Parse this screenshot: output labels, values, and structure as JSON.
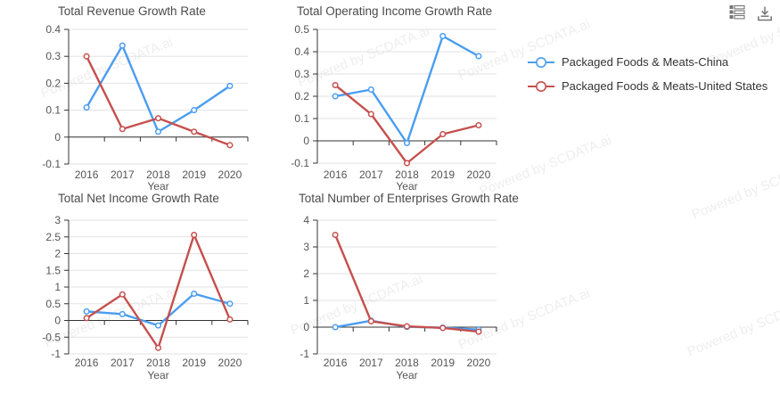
{
  "watermark": {
    "text": "Powered by SCDATA.ai"
  },
  "toolbar": {
    "icons": [
      {
        "name": "data-view"
      },
      {
        "name": "download"
      }
    ]
  },
  "legend": {
    "items": [
      {
        "label": "Packaged Foods & Meats-China",
        "color": "#4a9df0"
      },
      {
        "label": "Packaged Foods & Meats-United States",
        "color": "#c5504d"
      }
    ]
  },
  "colors": {
    "axis": "#333333",
    "grid": "#e2e2e6",
    "tick_label": "#555555",
    "title": "#4a4a4a",
    "toolbox_icon": "#757575",
    "series_china": "#4a9df0",
    "series_us": "#c5504d"
  },
  "chart_data": [
    {
      "type": "line",
      "title": "Total Revenue Growth Rate",
      "xlabel": "Year",
      "categories": [
        "2016",
        "2017",
        "2018",
        "2019",
        "2020"
      ],
      "ylim": [
        -0.1,
        0.4
      ],
      "ytick_step": 0.1,
      "grid": true,
      "series": [
        {
          "name": "Packaged Foods & Meats-China",
          "color": "#4a9df0",
          "values": [
            0.11,
            0.34,
            0.02,
            0.1,
            0.19
          ]
        },
        {
          "name": "Packaged Foods & Meats-United States",
          "color": "#c5504d",
          "values": [
            0.3,
            0.03,
            0.07,
            0.02,
            -0.03
          ]
        }
      ]
    },
    {
      "type": "line",
      "title": "Total Operating Income Growth Rate",
      "xlabel": "Year",
      "categories": [
        "2016",
        "2017",
        "2018",
        "2019",
        "2020"
      ],
      "ylim": [
        -0.1,
        0.5
      ],
      "ytick_step": 0.1,
      "grid": true,
      "series": [
        {
          "name": "Packaged Foods & Meats-China",
          "color": "#4a9df0",
          "values": [
            0.2,
            0.23,
            -0.01,
            0.47,
            0.38
          ]
        },
        {
          "name": "Packaged Foods & Meats-United States",
          "color": "#c5504d",
          "values": [
            0.25,
            0.12,
            -0.1,
            0.03,
            0.07
          ]
        }
      ]
    },
    {
      "type": "line",
      "title": "Total Net Income Growth Rate",
      "xlabel": "Year",
      "categories": [
        "2016",
        "2017",
        "2018",
        "2019",
        "2020"
      ],
      "ylim": [
        -1,
        3
      ],
      "ytick_step": 0.5,
      "grid": true,
      "series": [
        {
          "name": "Packaged Foods & Meats-China",
          "color": "#4a9df0",
          "values": [
            0.27,
            0.19,
            -0.15,
            0.8,
            0.5
          ]
        },
        {
          "name": "Packaged Foods & Meats-United States",
          "color": "#c5504d",
          "values": [
            0.07,
            0.78,
            -0.82,
            2.56,
            0.03
          ]
        }
      ]
    },
    {
      "type": "line",
      "title": "Total Number of Enterprises Growth Rate",
      "xlabel": "Year",
      "categories": [
        "2016",
        "2017",
        "2018",
        "2019",
        "2020"
      ],
      "ylim": [
        -1,
        4
      ],
      "ytick_step": 1,
      "grid": true,
      "series": [
        {
          "name": "Packaged Foods & Meats-China",
          "color": "#4a9df0",
          "values": [
            0.0,
            0.24,
            0.01,
            -0.02,
            -0.09
          ]
        },
        {
          "name": "Packaged Foods & Meats-United States",
          "color": "#c5504d",
          "values": [
            3.45,
            0.22,
            0.03,
            -0.03,
            -0.17
          ]
        }
      ]
    }
  ]
}
